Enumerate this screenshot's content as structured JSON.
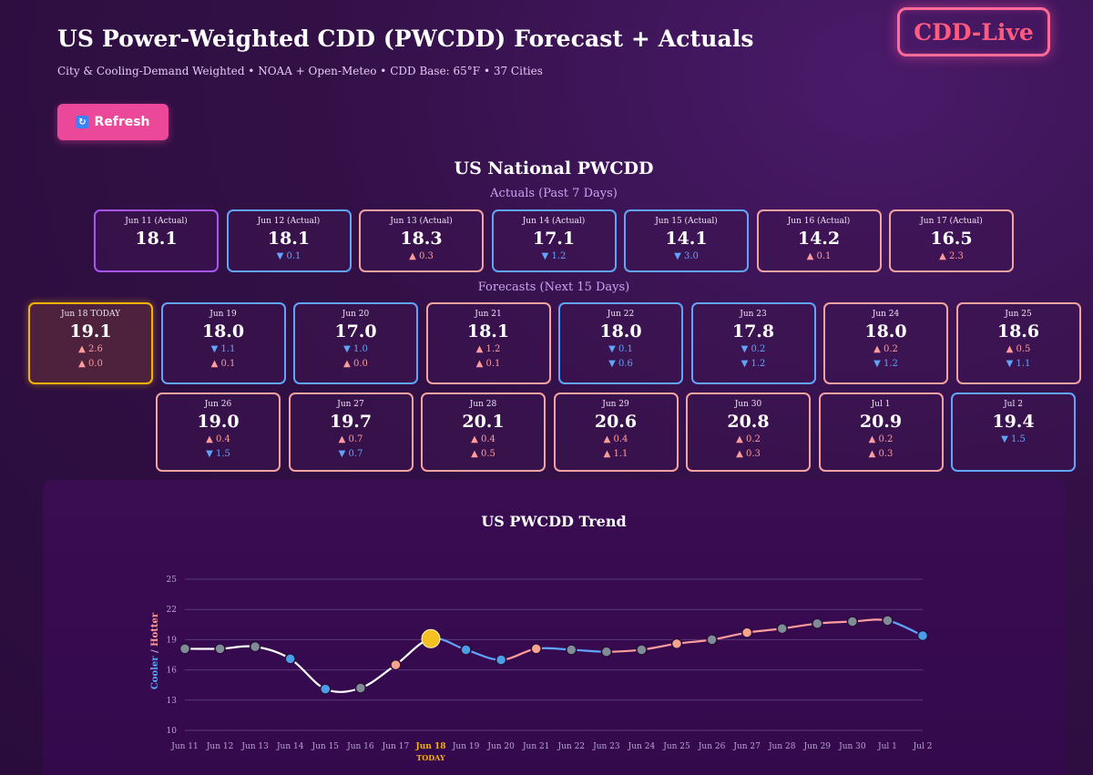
{
  "header": {
    "title": "US Power-Weighted CDD (PWCDD) Forecast + Actuals",
    "subtitle": "City & Cooling-Demand Weighted • NOAA + Open-Meteo • CDD Base: 65°F • 37 Cities",
    "logo": "CDD-Live",
    "refresh_label": "Refresh",
    "refresh_icon": "refresh-icon"
  },
  "section": {
    "title": "US National PWCDD",
    "actuals_label": "Actuals (Past 7 Days)",
    "forecasts_label": "Forecasts (Next 15 Days)"
  },
  "colors": {
    "up": "#ff9c9c",
    "down": "#60a5fa",
    "today": "#f5b301",
    "accent": "#ec4899"
  },
  "actuals": [
    {
      "label": "Jun 11 (Actual)",
      "value": "18.1",
      "d1": "",
      "d1dir": ""
    },
    {
      "label": "Jun 12 (Actual)",
      "value": "18.1",
      "d1": "▼ 0.1",
      "d1dir": "down"
    },
    {
      "label": "Jun 13 (Actual)",
      "value": "18.3",
      "d1": "▲ 0.3",
      "d1dir": "up"
    },
    {
      "label": "Jun 14 (Actual)",
      "value": "17.1",
      "d1": "▼ 1.2",
      "d1dir": "down"
    },
    {
      "label": "Jun 15 (Actual)",
      "value": "14.1",
      "d1": "▼ 3.0",
      "d1dir": "down"
    },
    {
      "label": "Jun 16 (Actual)",
      "value": "14.2",
      "d1": "▲ 0.1",
      "d1dir": "up"
    },
    {
      "label": "Jun 17 (Actual)",
      "value": "16.5",
      "d1": "▲ 2.3",
      "d1dir": "up"
    }
  ],
  "forecasts_row1": [
    {
      "label": "Jun 18 TODAY",
      "value": "19.1",
      "d1": "▲ 2.6",
      "d1dir": "up",
      "d2": "▲ 0.0",
      "d2dir": "up",
      "today": true
    },
    {
      "label": "Jun 19",
      "value": "18.0",
      "d1": "▼ 1.1",
      "d1dir": "down",
      "d2": "▲ 0.1",
      "d2dir": "up"
    },
    {
      "label": "Jun 20",
      "value": "17.0",
      "d1": "▼ 1.0",
      "d1dir": "down",
      "d2": "▲ 0.0",
      "d2dir": "up"
    },
    {
      "label": "Jun 21",
      "value": "18.1",
      "d1": "▲ 1.2",
      "d1dir": "up",
      "d2": "▲ 0.1",
      "d2dir": "up"
    },
    {
      "label": "Jun 22",
      "value": "18.0",
      "d1": "▼ 0.1",
      "d1dir": "down",
      "d2": "▼ 0.6",
      "d2dir": "down"
    },
    {
      "label": "Jun 23",
      "value": "17.8",
      "d1": "▼ 0.2",
      "d1dir": "down",
      "d2": "▼ 1.2",
      "d2dir": "down"
    },
    {
      "label": "Jun 24",
      "value": "18.0",
      "d1": "▲ 0.2",
      "d1dir": "up",
      "d2": "▼ 1.2",
      "d2dir": "down"
    },
    {
      "label": "Jun 25",
      "value": "18.6",
      "d1": "▲ 0.5",
      "d1dir": "up",
      "d2": "▼ 1.1",
      "d2dir": "down"
    }
  ],
  "forecasts_row2": [
    {
      "label": "Jun 26",
      "value": "19.0",
      "d1": "▲ 0.4",
      "d1dir": "up",
      "d2": "▼ 1.5",
      "d2dir": "down"
    },
    {
      "label": "Jun 27",
      "value": "19.7",
      "d1": "▲ 0.7",
      "d1dir": "up",
      "d2": "▼ 0.7",
      "d2dir": "down"
    },
    {
      "label": "Jun 28",
      "value": "20.1",
      "d1": "▲ 0.4",
      "d1dir": "up",
      "d2": "▲ 0.5",
      "d2dir": "up"
    },
    {
      "label": "Jun 29",
      "value": "20.6",
      "d1": "▲ 0.4",
      "d1dir": "up",
      "d2": "▲ 1.1",
      "d2dir": "up"
    },
    {
      "label": "Jun 30",
      "value": "20.8",
      "d1": "▲ 0.2",
      "d1dir": "up",
      "d2": "▲ 0.3",
      "d2dir": "up"
    },
    {
      "label": "Jul 1",
      "value": "20.9",
      "d1": "▲ 0.2",
      "d1dir": "up",
      "d2": "▲ 0.3",
      "d2dir": "up"
    },
    {
      "label": "Jul 2",
      "value": "19.4",
      "d1": "▼ 1.5",
      "d1dir": "down",
      "d2": "",
      "d2dir": ""
    }
  ],
  "chart_data": {
    "type": "line",
    "title": "US PWCDD Trend",
    "ylabel_cool": "Cooler",
    "ylabel_sep": " / ",
    "ylabel_hot": "Hotter",
    "ylim": [
      10,
      25
    ],
    "yticks": [
      10,
      13,
      16,
      19,
      22,
      25
    ],
    "grid": true,
    "today_index": 7,
    "today_label": "TODAY",
    "x": [
      "Jun 11",
      "Jun 12",
      "Jun 13",
      "Jun 14",
      "Jun 15",
      "Jun 16",
      "Jun 17",
      "Jun 18",
      "Jun 19",
      "Jun 20",
      "Jun 21",
      "Jun 22",
      "Jun 23",
      "Jun 24",
      "Jun 25",
      "Jun 26",
      "Jun 27",
      "Jun 28",
      "Jun 29",
      "Jun 30",
      "Jul 1",
      "Jul 2"
    ],
    "values": [
      18.1,
      18.1,
      18.3,
      17.1,
      14.1,
      14.2,
      16.5,
      19.1,
      18.0,
      17.0,
      18.1,
      18.0,
      17.8,
      18.0,
      18.6,
      19.0,
      19.7,
      20.1,
      20.6,
      20.8,
      20.9,
      19.4
    ],
    "point_tones": [
      "neutral",
      "neutral",
      "neutral",
      "down",
      "down",
      "neutral",
      "up",
      "today",
      "down",
      "down",
      "up",
      "neutral",
      "neutral",
      "neutral",
      "up",
      "neutral",
      "up",
      "neutral",
      "neutral",
      "neutral",
      "neutral",
      "down"
    ]
  }
}
